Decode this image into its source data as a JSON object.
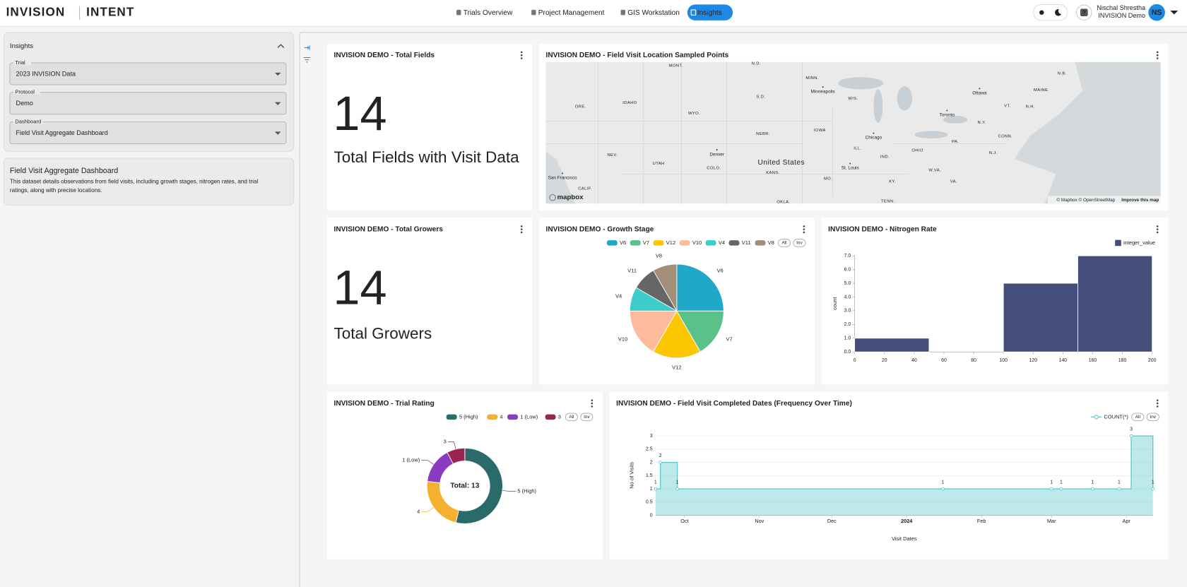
{
  "header": {
    "brand": "INVISION",
    "product": "INTENT",
    "nav": [
      "Trials Overview",
      "Project Management",
      "GIS Workstation",
      "Insights"
    ],
    "user_name": "Nischal Shrestha",
    "user_org": "INVISION Demo",
    "avatar": "NS",
    "help": "?"
  },
  "sidebar": {
    "title": "Insights",
    "fields": [
      {
        "label": "Trial",
        "value": "2023 INVISION Data"
      },
      {
        "label": "Protocol",
        "value": "Demo"
      },
      {
        "label": "Dashboard",
        "value": "Field Visit Aggregate Dashboard"
      }
    ],
    "card": {
      "title": "Field Visit Aggregate Dashboard",
      "description": [
        "This dataset details observations from field visits, including growth stages, nitrogen rates, and trial",
        "ratings, along with precise locations."
      ]
    }
  },
  "big_numbers": [
    {
      "title": "INVISION DEMO - Total Fields",
      "value": 14,
      "caption": "Total Fields with Visit Data"
    },
    {
      "title": "INVISION DEMO - Total Growers",
      "value": 14,
      "caption": "Total Growers"
    }
  ],
  "map": {
    "title": "INVISION DEMO - Field Visit Location Sampled Points",
    "labels": [
      "MONT.",
      "N.D.",
      "MINN.",
      "Minneapolis",
      "WIS.",
      "Ottawa",
      "MAINE",
      "N.B.",
      "N.H.",
      "VT.",
      "N.Y.",
      "Toronto",
      "S.D.",
      "IDAHO",
      "WYO.",
      "ORE.",
      "IOWA",
      "NEBR.",
      "Chicago",
      "ILL.",
      "IND.",
      "OHIO",
      "PA.",
      "CONN.",
      "N.J.",
      "NEV.",
      "UTAH",
      "Denver",
      "COLO.",
      "United States",
      "KANS.",
      "MO.",
      "St. Louis",
      "KY.",
      "W.VA.",
      "VA.",
      "San Francisco",
      "CALIF.",
      "OKLA.",
      "TENN."
    ],
    "logo": "mapbox",
    "attribution": "© Mapbox © OpenStreetMap",
    "link": "Improve this map"
  },
  "chart_data": [
    {
      "type": "pie",
      "title": "INVISION DEMO - Growth Stage",
      "categories": [
        "V6",
        "V7",
        "V12",
        "V10",
        "V4",
        "V11",
        "V8"
      ],
      "values": [
        3,
        2,
        2,
        2,
        1,
        1,
        1
      ],
      "colors": [
        "#1fa8c9",
        "#5ac189",
        "#fcc700",
        "#fdbb9c",
        "#3cccca",
        "#666666",
        "#a38f79"
      ],
      "legend_buttons": [
        "All",
        "Inv"
      ]
    },
    {
      "type": "histogram",
      "title": "INVISION DEMO - Nitrogen Rate",
      "bins": [
        0,
        50,
        100,
        150,
        200
      ],
      "series": [
        {
          "name": "integer_value",
          "color": "#454d7b",
          "values": [
            1,
            0,
            5,
            7
          ]
        }
      ],
      "y_label": "count",
      "xlim": [
        0,
        200
      ],
      "xticks": [
        0,
        20,
        40,
        60,
        80,
        100,
        120,
        140,
        160,
        180,
        200
      ],
      "ylim": [
        0,
        7
      ],
      "yticks": [
        {
          "value": 0,
          "label": "0.0"
        },
        {
          "value": 1,
          "label": "1.0"
        },
        {
          "value": 2,
          "label": "2.0"
        },
        {
          "value": 3,
          "label": "3.0"
        },
        {
          "value": 4,
          "label": "4.0"
        },
        {
          "value": 5,
          "label": "5.0"
        },
        {
          "value": 6,
          "label": "6.0"
        },
        {
          "value": 7,
          "label": "7.0"
        }
      ]
    },
    {
      "type": "donut",
      "title": "INVISION DEMO - Trial Rating",
      "categories": [
        "5 (High)",
        "4",
        "1 (Low)",
        "3"
      ],
      "values": [
        7,
        3,
        2,
        1
      ],
      "colors": [
        "#2a6b6a",
        "#f4b02e",
        "#8a3bc0",
        "#9c2452"
      ],
      "center_label": "Total: 13",
      "legend_buttons": [
        "All",
        "Inv"
      ]
    },
    {
      "type": "line",
      "title": "INVISION DEMO - Field Visit Completed Dates (Frequency Over Time)",
      "x": [
        "2023-09-19",
        "2023-09-21",
        "2023-09-28",
        "2024-01-16",
        "2024-03-01",
        "2024-03-05",
        "2024-03-18",
        "2024-03-29",
        "2024-04-03",
        "2024-04-12"
      ],
      "series": [
        {
          "name": "COUNT(*)",
          "color": "#5cc8cb",
          "values": [
            1,
            2,
            1,
            1,
            1,
            1,
            1,
            1,
            3,
            1
          ]
        }
      ],
      "step": true,
      "x_label": "Visit Dates",
      "y_label": "No of Visits",
      "xlim": [
        "2023-09-19",
        "2024-04-12"
      ],
      "xticks": [
        {
          "value": "2023-10-01",
          "label": "Oct"
        },
        {
          "value": "2023-11-01",
          "label": "Nov"
        },
        {
          "value": "2023-12-01",
          "label": "Dec"
        },
        {
          "value": "2024-01-01",
          "label": "2024"
        },
        {
          "value": "2024-02-01",
          "label": "Feb"
        },
        {
          "value": "2024-03-01",
          "label": "Mar"
        },
        {
          "value": "2024-04-01",
          "label": "Apr"
        }
      ],
      "ylim": [
        0,
        3
      ],
      "yticks": [
        0,
        0.5,
        1,
        1.5,
        2,
        2.5,
        3
      ],
      "legend_buttons": [
        "All",
        "Inv"
      ]
    }
  ]
}
